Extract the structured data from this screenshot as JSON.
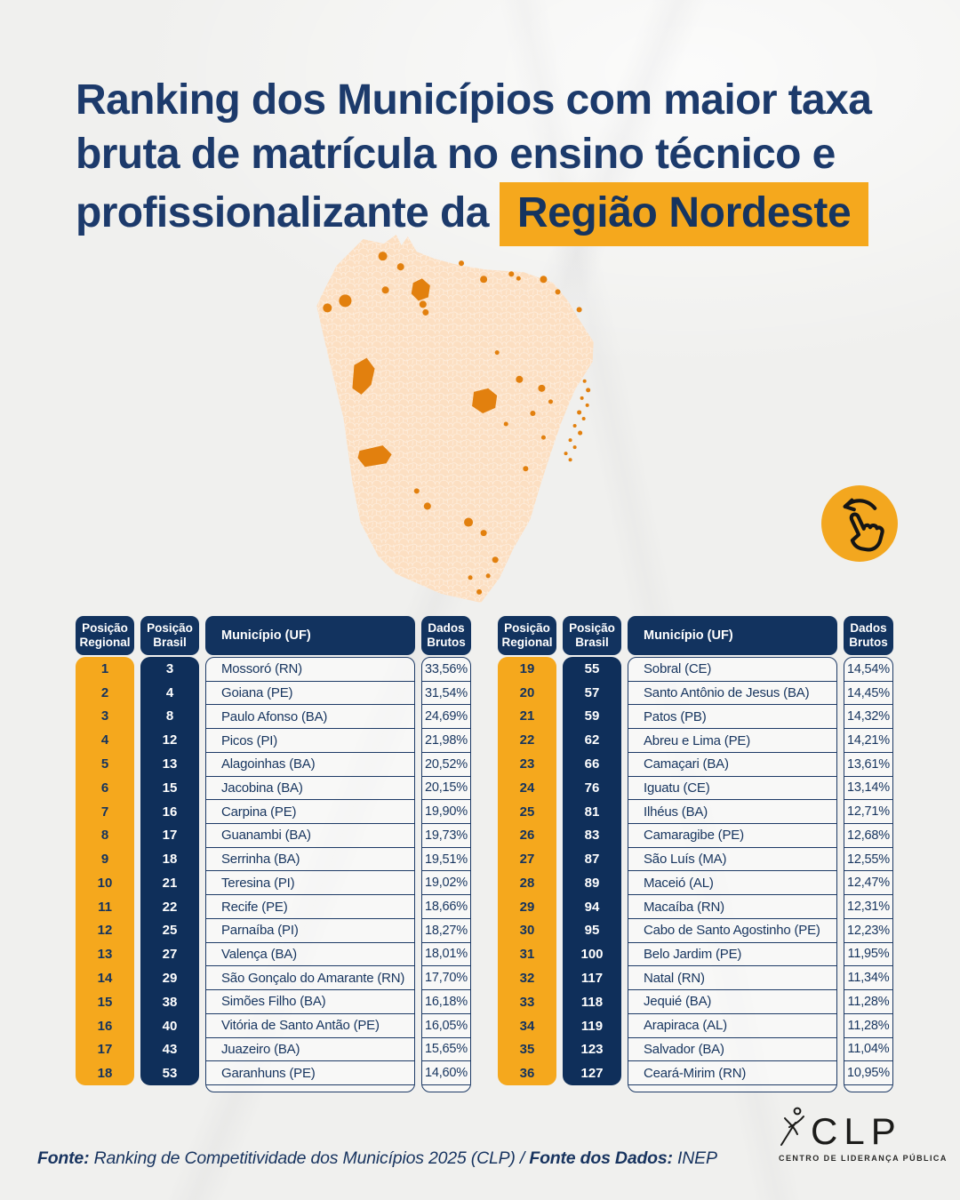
{
  "title": {
    "line1": "Ranking dos Municípios com maior taxa",
    "line2": "bruta de matrícula no ensino técnico e",
    "line3_prefix": "profissionalizante da",
    "line3_highlight": "Região Nordeste"
  },
  "map": {
    "name": "northeast-brazil-municipalities-map",
    "base_color": "#fcdfc2",
    "highlight_color": "#e2800e"
  },
  "swipe_hint": {
    "icon": "swipe-left-hand-icon",
    "circle_color": "#f3a71f"
  },
  "table": {
    "headers": {
      "pos_regional": "Posição\nRegional",
      "pos_brasil": "Posição\nBrasil",
      "municipio": "Município (UF)",
      "dados": "Dados\nBrutos"
    }
  },
  "tables": [
    {
      "rows": [
        {
          "pr": "1",
          "pb": "3",
          "mun": "Mossoró (RN)",
          "val": "33,56%"
        },
        {
          "pr": "2",
          "pb": "4",
          "mun": "Goiana (PE)",
          "val": "31,54%"
        },
        {
          "pr": "3",
          "pb": "8",
          "mun": "Paulo Afonso (BA)",
          "val": "24,69%"
        },
        {
          "pr": "4",
          "pb": "12",
          "mun": "Picos (PI)",
          "val": "21,98%"
        },
        {
          "pr": "5",
          "pb": "13",
          "mun": "Alagoinhas (BA)",
          "val": "20,52%"
        },
        {
          "pr": "6",
          "pb": "15",
          "mun": "Jacobina (BA)",
          "val": "20,15%"
        },
        {
          "pr": "7",
          "pb": "16",
          "mun": "Carpina (PE)",
          "val": "19,90%"
        },
        {
          "pr": "8",
          "pb": "17",
          "mun": "Guanambi (BA)",
          "val": "19,73%"
        },
        {
          "pr": "9",
          "pb": "18",
          "mun": "Serrinha (BA)",
          "val": "19,51%"
        },
        {
          "pr": "10",
          "pb": "21",
          "mun": "Teresina (PI)",
          "val": "19,02%"
        },
        {
          "pr": "11",
          "pb": "22",
          "mun": "Recife (PE)",
          "val": "18,66%"
        },
        {
          "pr": "12",
          "pb": "25",
          "mun": "Parnaíba (PI)",
          "val": "18,27%"
        },
        {
          "pr": "13",
          "pb": "27",
          "mun": "Valença (BA)",
          "val": "18,01%"
        },
        {
          "pr": "14",
          "pb": "29",
          "mun": "São Gonçalo do Amarante (RN)",
          "val": "17,70%"
        },
        {
          "pr": "15",
          "pb": "38",
          "mun": "Simões Filho (BA)",
          "val": "16,18%"
        },
        {
          "pr": "16",
          "pb": "40",
          "mun": "Vitória de Santo Antão (PE)",
          "val": "16,05%"
        },
        {
          "pr": "17",
          "pb": "43",
          "mun": "Juazeiro (BA)",
          "val": "15,65%"
        },
        {
          "pr": "18",
          "pb": "53",
          "mun": "Garanhuns (PE)",
          "val": "14,60%"
        }
      ]
    },
    {
      "rows": [
        {
          "pr": "19",
          "pb": "55",
          "mun": "Sobral (CE)",
          "val": "14,54%"
        },
        {
          "pr": "20",
          "pb": "57",
          "mun": "Santo Antônio de Jesus (BA)",
          "val": "14,45%"
        },
        {
          "pr": "21",
          "pb": "59",
          "mun": "Patos (PB)",
          "val": "14,32%"
        },
        {
          "pr": "22",
          "pb": "62",
          "mun": "Abreu e Lima (PE)",
          "val": "14,21%"
        },
        {
          "pr": "23",
          "pb": "66",
          "mun": "Camaçari (BA)",
          "val": "13,61%"
        },
        {
          "pr": "24",
          "pb": "76",
          "mun": "Iguatu (CE)",
          "val": "13,14%"
        },
        {
          "pr": "25",
          "pb": "81",
          "mun": "Ilhéus (BA)",
          "val": "12,71%"
        },
        {
          "pr": "26",
          "pb": "83",
          "mun": "Camaragibe (PE)",
          "val": "12,68%"
        },
        {
          "pr": "27",
          "pb": "87",
          "mun": "São Luís (MA)",
          "val": "12,55%"
        },
        {
          "pr": "28",
          "pb": "89",
          "mun": "Maceió (AL)",
          "val": "12,47%"
        },
        {
          "pr": "29",
          "pb": "94",
          "mun": "Macaíba (RN)",
          "val": "12,31%"
        },
        {
          "pr": "30",
          "pb": "95",
          "mun": "Cabo de Santo Agostinho (PE)",
          "val": "12,23%"
        },
        {
          "pr": "31",
          "pb": "100",
          "mun": "Belo Jardim (PE)",
          "val": "11,95%"
        },
        {
          "pr": "32",
          "pb": "117",
          "mun": "Natal (RN)",
          "val": "11,34%"
        },
        {
          "pr": "33",
          "pb": "118",
          "mun": "Jequié (BA)",
          "val": "11,28%"
        },
        {
          "pr": "34",
          "pb": "119",
          "mun": "Arapiraca (AL)",
          "val": "11,28%"
        },
        {
          "pr": "35",
          "pb": "123",
          "mun": "Salvador (BA)",
          "val": "11,04%"
        },
        {
          "pr": "36",
          "pb": "127",
          "mun": "Ceará-Mirim (RN)",
          "val": "10,95%"
        }
      ]
    }
  ],
  "chart_data": {
    "type": "table",
    "title": "Ranking dos Municípios com maior taxa bruta de matrícula no ensino técnico e profissionalizante da Região Nordeste",
    "columns": [
      "Posição Regional",
      "Posição Brasil",
      "Município (UF)",
      "Dados Brutos"
    ],
    "rows": [
      [
        1,
        3,
        "Mossoró (RN)",
        "33,56%"
      ],
      [
        2,
        4,
        "Goiana (PE)",
        "31,54%"
      ],
      [
        3,
        8,
        "Paulo Afonso (BA)",
        "24,69%"
      ],
      [
        4,
        12,
        "Picos (PI)",
        "21,98%"
      ],
      [
        5,
        13,
        "Alagoinhas (BA)",
        "20,52%"
      ],
      [
        6,
        15,
        "Jacobina (BA)",
        "20,15%"
      ],
      [
        7,
        16,
        "Carpina (PE)",
        "19,90%"
      ],
      [
        8,
        17,
        "Guanambi (BA)",
        "19,73%"
      ],
      [
        9,
        18,
        "Serrinha (BA)",
        "19,51%"
      ],
      [
        10,
        21,
        "Teresina (PI)",
        "19,02%"
      ],
      [
        11,
        22,
        "Recife (PE)",
        "18,66%"
      ],
      [
        12,
        25,
        "Parnaíba (PI)",
        "18,27%"
      ],
      [
        13,
        27,
        "Valença (BA)",
        "18,01%"
      ],
      [
        14,
        29,
        "São Gonçalo do Amarante (RN)",
        "17,70%"
      ],
      [
        15,
        38,
        "Simões Filho (BA)",
        "16,18%"
      ],
      [
        16,
        40,
        "Vitória de Santo Antão (PE)",
        "16,05%"
      ],
      [
        17,
        43,
        "Juazeiro (BA)",
        "15,65%"
      ],
      [
        18,
        53,
        "Garanhuns (PE)",
        "14,60%"
      ],
      [
        19,
        55,
        "Sobral (CE)",
        "14,54%"
      ],
      [
        20,
        57,
        "Santo Antônio de Jesus (BA)",
        "14,45%"
      ],
      [
        21,
        59,
        "Patos (PB)",
        "14,32%"
      ],
      [
        22,
        62,
        "Abreu e Lima (PE)",
        "14,21%"
      ],
      [
        23,
        66,
        "Camaçari (BA)",
        "13,61%"
      ],
      [
        24,
        76,
        "Iguatu (CE)",
        "13,14%"
      ],
      [
        25,
        81,
        "Ilhéus (BA)",
        "12,71%"
      ],
      [
        26,
        83,
        "Camaragibe (PE)",
        "12,68%"
      ],
      [
        27,
        87,
        "São Luís (MA)",
        "12,55%"
      ],
      [
        28,
        89,
        "Maceió (AL)",
        "12,47%"
      ],
      [
        29,
        94,
        "Macaíba (RN)",
        "12,31%"
      ],
      [
        30,
        95,
        "Cabo de Santo Agostinho (PE)",
        "12,23%"
      ],
      [
        31,
        100,
        "Belo Jardim (PE)",
        "11,95%"
      ],
      [
        32,
        117,
        "Natal (RN)",
        "11,34%"
      ],
      [
        33,
        118,
        "Jequié (BA)",
        "11,28%"
      ],
      [
        34,
        119,
        "Arapiraca (AL)",
        "11,28%"
      ],
      [
        35,
        123,
        "Salvador (BA)",
        "11,04%"
      ],
      [
        36,
        127,
        "Ceará-Mirim (RN)",
        "10,95%"
      ]
    ],
    "source": "Fonte: Ranking de Competitividade dos Municípios 2025 (CLP) / Fonte dos Dados: INEP"
  },
  "footer": {
    "fonte_label": "Fonte:",
    "fonte_value": "Ranking de Competitividade dos Municípios 2025 (CLP) /",
    "dados_label": "Fonte dos Dados:",
    "dados_value": "INEP"
  },
  "logo": {
    "acronym": "CLP",
    "subtitle": "CENTRO DE LIDERANÇA PÚBLICA"
  },
  "colors": {
    "navy": "#12335f",
    "navy_dark": "#0f2f5a",
    "title_navy": "#1c3a6b",
    "yellow": "#f5a81d",
    "map_base": "#fcdfc2",
    "map_highlight": "#e2800e",
    "paper": "#f0f0ee"
  }
}
